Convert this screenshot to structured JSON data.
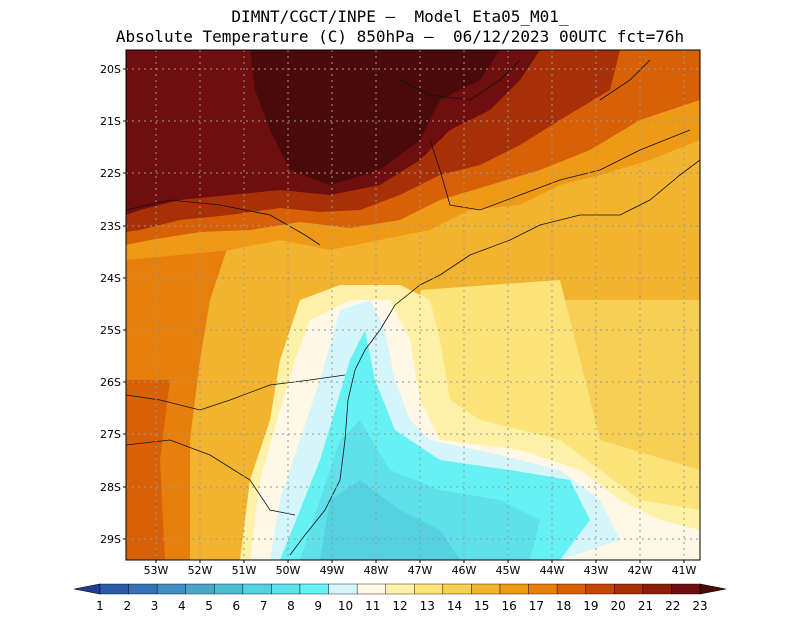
{
  "header": {
    "line1": "DIMNT/CGCT/INPE –  Model Eta05_M01_",
    "line2": "Absolute Temperature (C) 850hPa –  06/12/2023 00UTC fct=76h"
  },
  "map": {
    "lat_labels": [
      "20S",
      "21S",
      "22S",
      "23S",
      "24S",
      "25S",
      "26S",
      "27S",
      "28S",
      "29S"
    ],
    "lon_labels": [
      "53W",
      "52W",
      "51W",
      "50W",
      "49W",
      "48W",
      "47W",
      "46W",
      "45W",
      "44W",
      "43W",
      "42W",
      "41W"
    ]
  },
  "colorbar": {
    "labels": [
      "1",
      "2",
      "3",
      "4",
      "5",
      "6",
      "7",
      "8",
      "9",
      "10",
      "11",
      "12",
      "13",
      "14",
      "15",
      "16",
      "17",
      "18",
      "19",
      "20",
      "21",
      "22",
      "23"
    ],
    "colors": [
      "#1f3f96",
      "#2b5aa8",
      "#3473b4",
      "#3f8ebf",
      "#4aa6c8",
      "#4dbdd3",
      "#55d1e0",
      "#5ee1ea",
      "#66f2f5",
      "#d4f6fb",
      "#fff8e6",
      "#fff2a8",
      "#fde47a",
      "#f7cf55",
      "#f2b42f",
      "#ee9a16",
      "#e77f0c",
      "#d86108",
      "#c44606",
      "#a83006",
      "#8a1e0a",
      "#6e0e0e",
      "#4a0a0a"
    ]
  }
}
